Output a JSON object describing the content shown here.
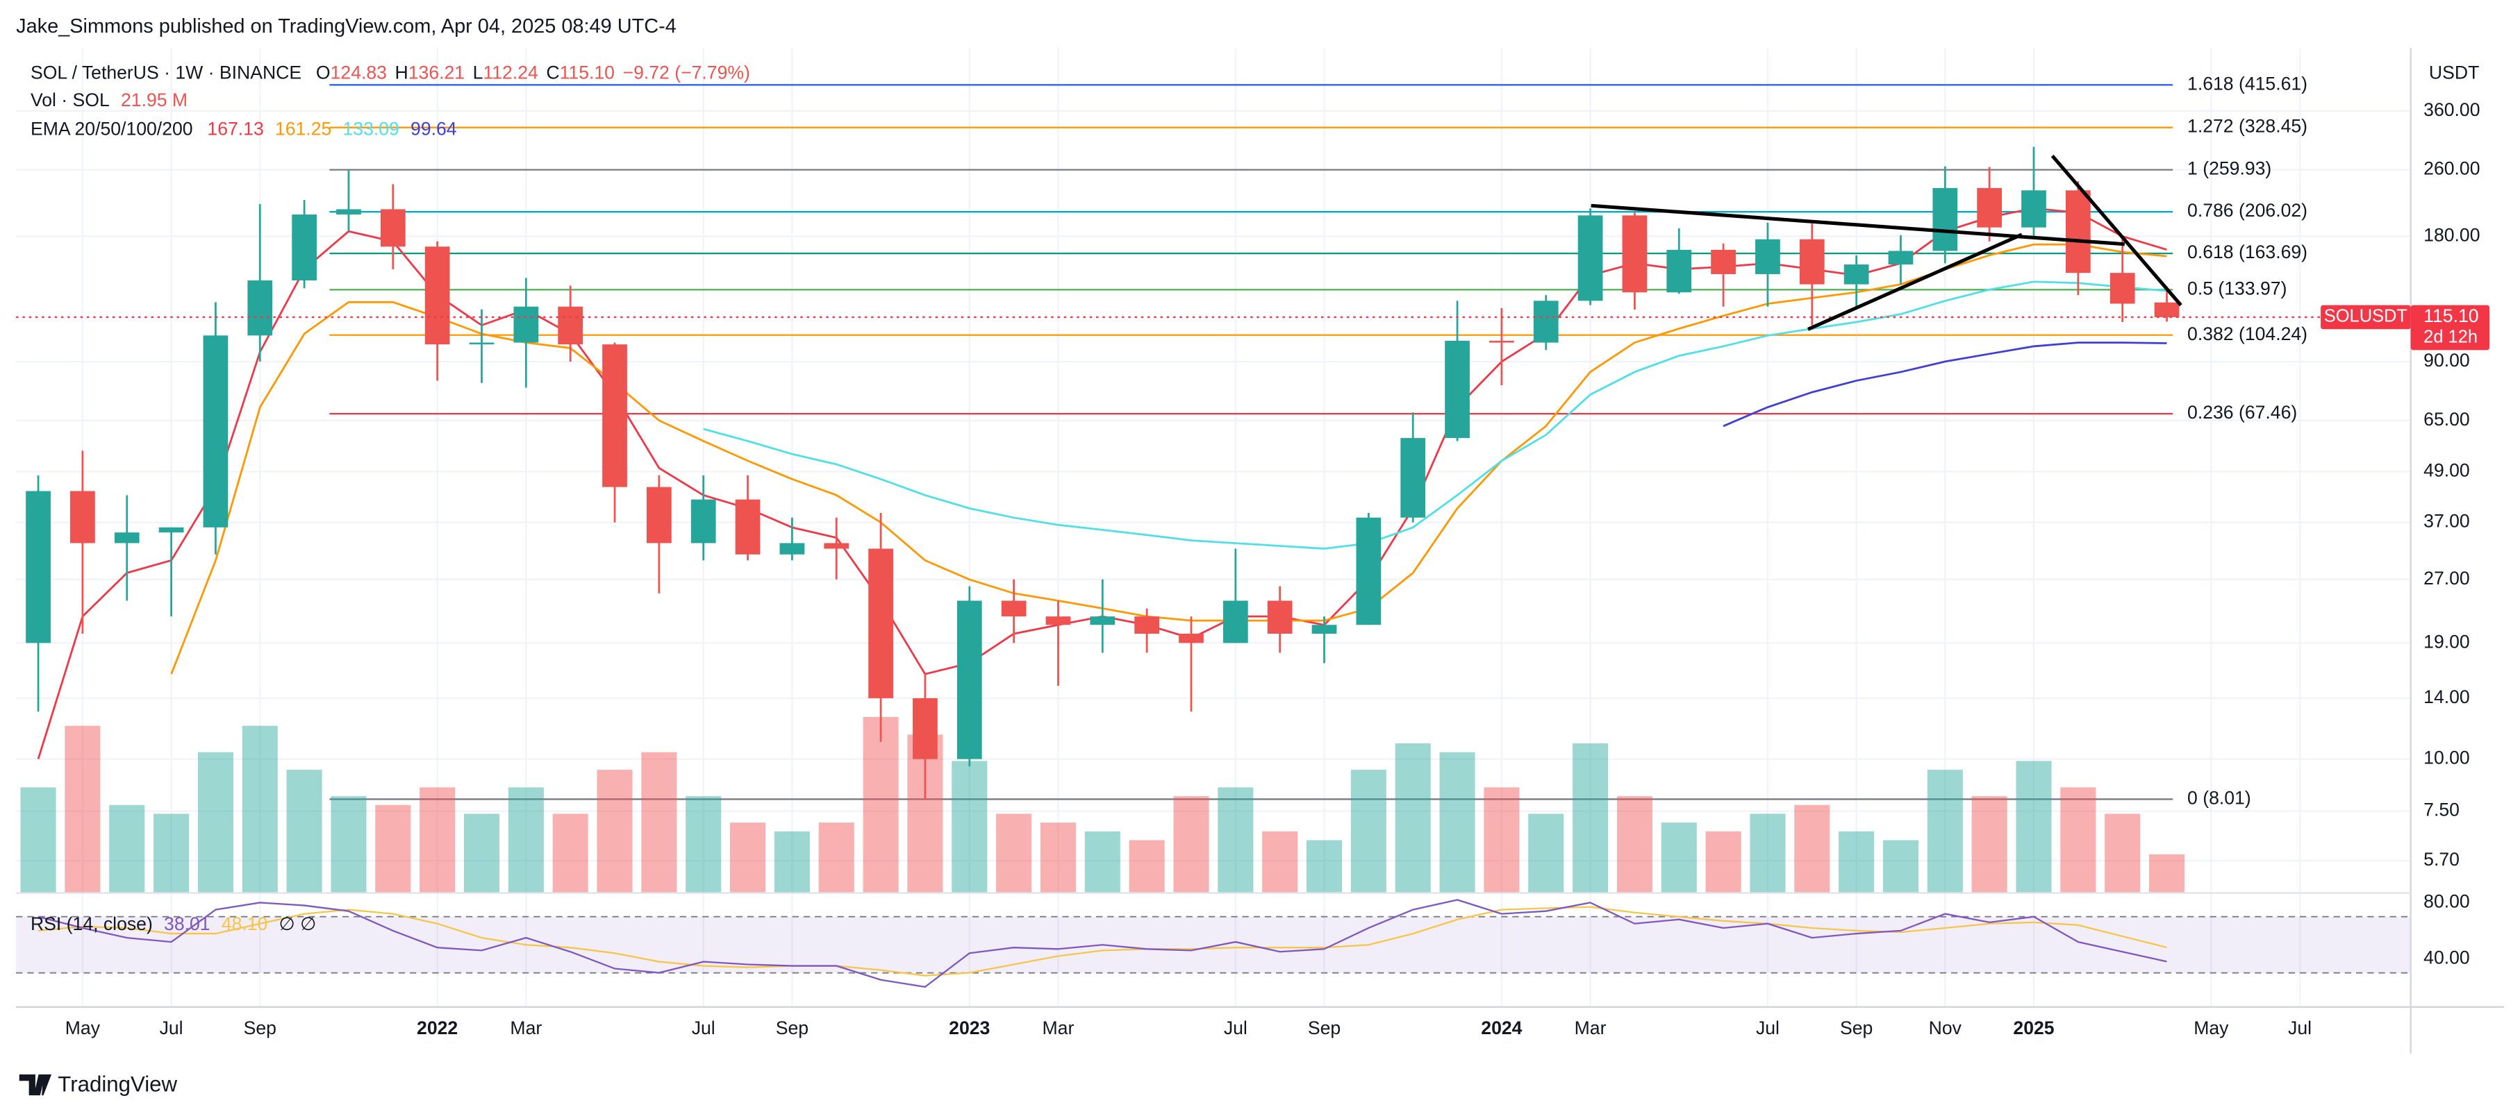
{
  "header": {
    "publisher": "Jake_Simmons published on TradingView.com, Apr 04, 2025 08:49 UTC-4",
    "footer_logo": "TradingView"
  },
  "chart_data": {
    "type": "candlestick",
    "symbol": "SOL / TetherUS · 1W · BINANCE",
    "ohlc_readout": [
      {
        "key": "O",
        "value": "124.83"
      },
      {
        "key": "H",
        "value": "136.21"
      },
      {
        "key": "L",
        "value": "112.24"
      },
      {
        "key": "C",
        "value": "115.10"
      }
    ],
    "change": "−9.72 (−7.79%)",
    "volume_title": "Vol · SOL",
    "ema_title": "EMA 20/50/100/200",
    "rsi_title": "RSI (14, close)",
    "rsi_extra": "∅  ∅",
    "currency": "USDT",
    "up_color": "#26a69a",
    "down_color": "#ef5350",
    "log_scale": true,
    "grid": true,
    "categories": [
      null,
      "May",
      null,
      "Jul",
      null,
      "Sep",
      null,
      null,
      null,
      "2022",
      null,
      "Mar",
      null,
      null,
      null,
      "Jul",
      null,
      "Sep",
      null,
      null,
      null,
      "2023",
      null,
      "Mar",
      null,
      null,
      null,
      "Jul",
      null,
      "Sep",
      null,
      null,
      null,
      "2024",
      null,
      "Mar",
      null,
      null,
      null,
      "Jul",
      null,
      "Sep",
      null,
      "Nov",
      null,
      "2025",
      null,
      null,
      null,
      "May",
      null,
      "Jul",
      null,
      null
    ],
    "open": [
      19,
      44,
      33,
      35,
      36,
      104,
      141,
      203,
      209,
      170,
      99,
      100,
      122,
      99,
      45,
      33,
      42,
      31,
      33,
      32,
      14,
      10,
      24,
      22,
      21,
      22,
      20,
      19,
      24,
      20,
      21,
      38,
      59,
      101,
      100,
      126,
      202,
      132,
      167,
      146,
      177,
      138,
      154,
      166,
      235,
      189,
      232,
      147,
      124.83,
      null,
      null,
      null,
      null,
      null
    ],
    "high": [
      48,
      55,
      43,
      36,
      125,
      215,
      220,
      259,
      240,
      175,
      120,
      143,
      137,
      100,
      48,
      48,
      48,
      38,
      38,
      39,
      16,
      26,
      27,
      24,
      27,
      23,
      22,
      32,
      26,
      22,
      39,
      68,
      126,
      121,
      130,
      210,
      205,
      188,
      173,
      194,
      193,
      162,
      181,
      265,
      264,
      295,
      244,
      180,
      136.21,
      null,
      null,
      null,
      null,
      null
    ],
    "low": [
      13,
      20,
      24,
      22,
      31,
      90,
      135,
      185,
      150,
      81,
      80,
      78,
      90,
      37,
      25,
      30,
      30,
      30,
      27,
      11,
      8,
      9.6,
      19,
      15,
      18,
      18,
      13,
      19,
      18,
      17,
      21,
      37,
      58,
      79,
      96,
      123,
      120,
      131,
      122,
      122,
      110,
      121,
      138,
      155,
      175,
      178,
      130,
      112,
      112.24,
      null,
      null,
      null,
      null,
      null
    ],
    "close": [
      44,
      33,
      35,
      36,
      104,
      141,
      203,
      209,
      170,
      99,
      100,
      122,
      99,
      45,
      33,
      42,
      31,
      33,
      32,
      14,
      10,
      24,
      22,
      21,
      22,
      20,
      19,
      24,
      20,
      21,
      38,
      59,
      101,
      100,
      126,
      202,
      132,
      167,
      146,
      177,
      138,
      154,
      166,
      235,
      189,
      232,
      147,
      124,
      115.1,
      null,
      null,
      null,
      null,
      null
    ],
    "volume": [
      60,
      95,
      50,
      45,
      80,
      95,
      70,
      55,
      50,
      60,
      45,
      60,
      45,
      70,
      80,
      55,
      40,
      35,
      40,
      100,
      90,
      75,
      45,
      40,
      35,
      30,
      55,
      60,
      35,
      30,
      70,
      85,
      80,
      60,
      45,
      85,
      55,
      40,
      35,
      45,
      50,
      35,
      30,
      70,
      55,
      75,
      60,
      45,
      21.95,
      null,
      null,
      null,
      null,
      null
    ],
    "volume_labels": [
      null,
      null,
      null,
      null,
      null,
      null,
      null,
      null,
      null,
      null,
      null,
      null,
      null,
      null,
      null,
      null,
      null,
      null,
      null,
      null,
      null,
      null,
      null,
      null,
      null,
      null,
      null,
      null,
      null,
      null,
      null,
      null,
      null,
      null,
      null,
      null,
      null,
      null,
      null,
      null,
      null,
      null,
      null,
      null,
      null,
      null,
      null,
      null,
      "21.95 M",
      null,
      null,
      null,
      null,
      null
    ],
    "volume_ylim": [
      0,
      480
    ],
    "ylim": [
      4.77,
      509
    ],
    "yticks": [
      {
        "value": 360,
        "label": "360.00"
      },
      {
        "value": 260,
        "label": "260.00"
      },
      {
        "value": 180,
        "label": "180.00"
      },
      {
        "value": 90,
        "label": "90.00"
      },
      {
        "value": 65,
        "label": "65.00"
      },
      {
        "value": 49,
        "label": "49.00"
      },
      {
        "value": 37,
        "label": "37.00"
      },
      {
        "value": 27,
        "label": "27.00"
      },
      {
        "value": 19,
        "label": "19.00"
      },
      {
        "value": 14,
        "label": "14.00"
      },
      {
        "value": 10,
        "label": "10.00"
      },
      {
        "value": 7.5,
        "label": "7.50"
      },
      {
        "value": 5.7,
        "label": "5.70"
      }
    ],
    "ema": [
      {
        "name": "EMA 20",
        "color": "#f23645",
        "values": [
          10,
          22,
          28,
          30,
          45,
          95,
          150,
          185,
          175,
          130,
          110,
          120,
          105,
          75,
          50,
          43,
          40,
          36,
          34,
          24,
          16,
          17,
          20,
          21,
          22,
          21,
          19.5,
          22,
          22,
          21,
          27,
          40,
          70,
          90,
          105,
          145,
          155,
          150,
          152,
          155,
          150,
          145,
          155,
          185,
          200,
          210,
          205,
          180,
          167.13,
          null,
          null,
          null,
          null,
          null
        ]
      },
      {
        "name": "EMA 50",
        "color": "#ff9800",
        "values": [
          null,
          null,
          null,
          16,
          30,
          70,
          105,
          125,
          125,
          115,
          105,
          100,
          97,
          80,
          65,
          58,
          52,
          47,
          43,
          37,
          30,
          27,
          25,
          24,
          23,
          22,
          21.5,
          21.5,
          21.5,
          21.5,
          23,
          28,
          40,
          52,
          63,
          85,
          100,
          108,
          116,
          124,
          128,
          132,
          138,
          150,
          162,
          172,
          172,
          165,
          161.25,
          null,
          null,
          null,
          null,
          null
        ]
      },
      {
        "name": "EMA 100",
        "color": "#4de0e8",
        "values": [
          null,
          null,
          null,
          null,
          null,
          null,
          null,
          null,
          null,
          null,
          null,
          null,
          null,
          null,
          null,
          62,
          58,
          54,
          51,
          47,
          43,
          40,
          38,
          36.5,
          35.5,
          34.5,
          33.5,
          33,
          32.5,
          32,
          33,
          36,
          43,
          52,
          60,
          75,
          85,
          93,
          98,
          104,
          108,
          112,
          117,
          126,
          134,
          140,
          139,
          136,
          133.09,
          null,
          null,
          null,
          null,
          null
        ]
      },
      {
        "name": "EMA 200",
        "color": "#3f3fd8",
        "values": [
          null,
          null,
          null,
          null,
          null,
          null,
          null,
          null,
          null,
          null,
          null,
          null,
          null,
          null,
          null,
          null,
          null,
          null,
          null,
          null,
          null,
          null,
          null,
          null,
          null,
          null,
          null,
          null,
          null,
          null,
          null,
          null,
          null,
          null,
          null,
          null,
          null,
          null,
          63,
          70,
          76,
          81,
          85,
          90,
          94,
          98,
          100,
          100,
          99.64,
          null,
          null,
          null,
          null,
          null
        ]
      }
    ],
    "fib": [
      {
        "label": "1.618 (415.61)",
        "price": 415.61,
        "color": "#2962ff"
      },
      {
        "label": "1.272 (328.45)",
        "price": 328.45,
        "color": "#ff9800"
      },
      {
        "label": "1 (259.93)",
        "price": 259.93,
        "color": "#787b86"
      },
      {
        "label": "0.786 (206.02)",
        "price": 206.02,
        "color": "#00acc1"
      },
      {
        "label": "0.618 (163.69)",
        "price": 163.69,
        "color": "#089981"
      },
      {
        "label": "0.5 (133.97)",
        "price": 133.97,
        "color": "#4caf50"
      },
      {
        "label": "0.382 (104.24)",
        "price": 104.24,
        "color": "#ff9800"
      },
      {
        "label": "0.236 (67.46)",
        "price": 67.46,
        "color": "#f23645"
      },
      {
        "label": "0 (8.01)",
        "price": 8.01,
        "color": "#787b86"
      }
    ],
    "last": {
      "symbol": "SOLUSDT",
      "value": 115.1,
      "label": "115.10",
      "countdown": "2d 12h",
      "color": "#f23645"
    },
    "rsi": {
      "ylim": [
        13.7,
        86.9
      ],
      "band": [
        30,
        70
      ],
      "yticks": [
        {
          "value": 80,
          "label": "80.00"
        },
        {
          "value": 40,
          "label": "40.00"
        }
      ],
      "series": [
        {
          "name": "RSI",
          "color": "#7e57c2",
          "values": [
            70,
            62,
            55,
            52,
            75,
            80,
            78,
            74,
            60,
            48,
            46,
            55,
            45,
            33,
            30,
            38,
            36,
            35,
            35,
            25,
            20,
            44,
            48,
            47,
            50,
            47,
            46,
            52,
            45,
            47,
            62,
            75,
            82,
            72,
            74,
            80,
            65,
            68,
            62,
            65,
            55,
            58,
            60,
            72,
            66,
            70,
            52,
            45,
            38.01,
            null,
            null,
            null,
            null,
            null
          ]
        },
        {
          "name": "RSI MA",
          "color": "#f7c548",
          "values": [
            60,
            63,
            62,
            58,
            58,
            65,
            72,
            75,
            72,
            65,
            55,
            50,
            48,
            44,
            38,
            35,
            34,
            35,
            35,
            32,
            28,
            30,
            36,
            42,
            46,
            47,
            47,
            48,
            48,
            48,
            50,
            58,
            68,
            75,
            76,
            77,
            73,
            70,
            67,
            65,
            62,
            60,
            59,
            62,
            65,
            66,
            64,
            56,
            48.1,
            null,
            null,
            null,
            null,
            null
          ],
          "value_labels": [
            null,
            null,
            null,
            null,
            null,
            null,
            null,
            null,
            null,
            null,
            null,
            null,
            null,
            null,
            null,
            null,
            null,
            null,
            null,
            null,
            null,
            null,
            null,
            null,
            null,
            null,
            null,
            null,
            null,
            null,
            null,
            null,
            null,
            null,
            null,
            null,
            null,
            null,
            null,
            null,
            null,
            null,
            null,
            null,
            null,
            null,
            null,
            null,
            "48.10",
            null,
            null,
            null,
            null,
            null
          ]
        }
      ]
    }
  }
}
